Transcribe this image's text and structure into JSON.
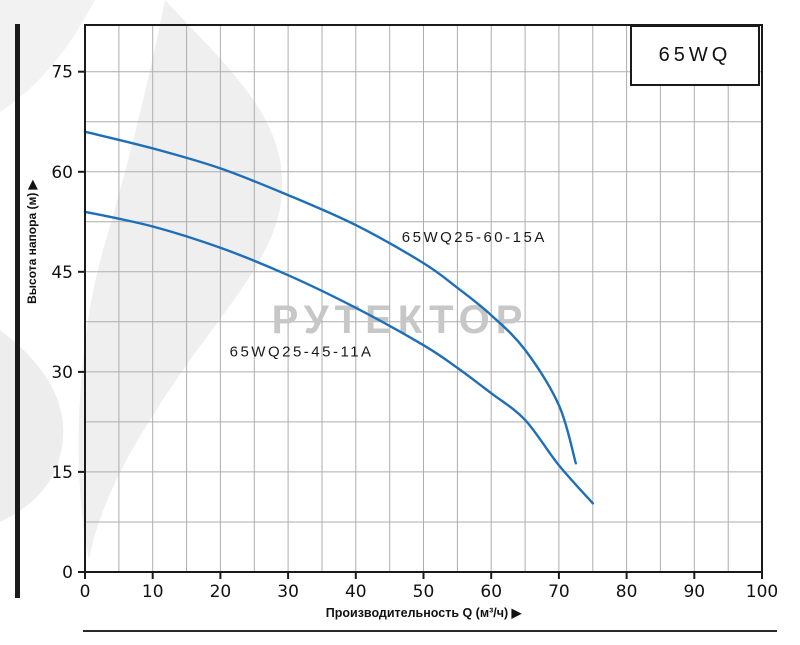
{
  "header": {
    "model_box_label": "65WQ"
  },
  "chart_data": {
    "type": "line",
    "title": "65WQ",
    "xlabel": "Производительность Q (м³/ч)",
    "ylabel": "Высота напора (м)",
    "xlim": [
      0,
      100
    ],
    "ylim": [
      0,
      82
    ],
    "x_ticks": [
      0,
      10,
      20,
      30,
      40,
      50,
      60,
      70,
      80,
      90,
      100
    ],
    "y_ticks": [
      0,
      15,
      30,
      45,
      60,
      75
    ],
    "grid": {
      "on": true,
      "x_minor_step": 5,
      "y_minor_step": 7.5
    },
    "legend_position": "inline-labels",
    "watermark": "РУТЕКТОР",
    "series": [
      {
        "name": "65WQ25-60-15A",
        "x": [
          0,
          10,
          20,
          30,
          40,
          50,
          55,
          60,
          65,
          70,
          72.5
        ],
        "y": [
          66,
          63.5,
          60.5,
          56.5,
          52,
          46.3,
          42.6,
          38.5,
          33.3,
          25,
          16.3
        ],
        "label_at": {
          "x": 57.5,
          "y": 49.5
        }
      },
      {
        "name": "65WQ25-45-11A",
        "x": [
          0,
          10,
          20,
          30,
          40,
          50,
          55,
          60,
          65,
          70,
          75
        ],
        "y": [
          54,
          51.8,
          48.6,
          44.5,
          39.6,
          34,
          30.6,
          26.8,
          22.8,
          16,
          10.3
        ],
        "label_at": {
          "x": 32,
          "y": 32.3
        }
      }
    ],
    "colors": {
      "curve": "#1f6fb8",
      "grid": "#adadad",
      "axis": "#1a1a1a",
      "watermark": "#c7c7c7",
      "label": "#1a1a1a"
    }
  }
}
